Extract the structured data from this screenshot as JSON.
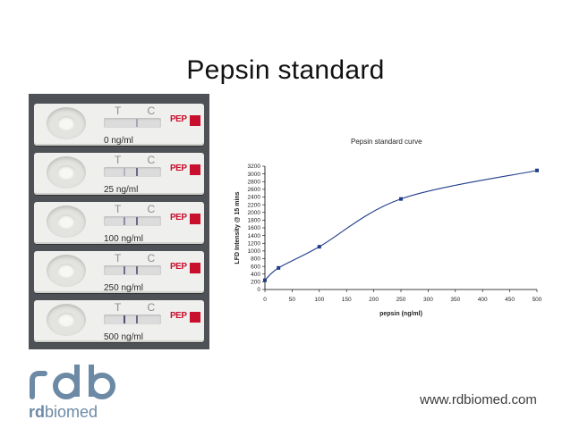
{
  "slide": {
    "title": "Pepsin standard",
    "url": "www.rdbiomed.com"
  },
  "brand": {
    "mark": "rdb",
    "wordmark_prefix": "rd",
    "wordmark_suffix": "biomed",
    "color": "#6c8aa6"
  },
  "photo": {
    "tc_label": "T C",
    "badge_text": "PEP",
    "strips": [
      {
        "concentration": "0 ng/ml"
      },
      {
        "concentration": "25 ng/ml"
      },
      {
        "concentration": "100 ng/ml"
      },
      {
        "concentration": "250 ng/ml"
      },
      {
        "concentration": "500 ng/ml"
      }
    ]
  },
  "chart_data": {
    "type": "scatter",
    "title": "Pepsin standard curve",
    "xlabel": "pepsin (ng/ml)",
    "ylabel": "LFD Intensity @ 15 mins",
    "xlim": [
      0,
      500
    ],
    "ylim": [
      0,
      3200
    ],
    "xticks": [
      0,
      50,
      100,
      150,
      200,
      250,
      300,
      350,
      400,
      450,
      500
    ],
    "yticks": [
      0,
      200,
      400,
      600,
      800,
      1000,
      1200,
      1400,
      1600,
      1800,
      2000,
      2200,
      2400,
      2600,
      2800,
      3000,
      3200
    ],
    "points": [
      {
        "x": 0,
        "y": 240
      },
      {
        "x": 25,
        "y": 560
      },
      {
        "x": 100,
        "y": 1110
      },
      {
        "x": 250,
        "y": 2350
      },
      {
        "x": 500,
        "y": 3090
      }
    ],
    "fit_curve": true,
    "grid": false,
    "marker_color": "#1f3d8a",
    "line_color": "#1f3d8a"
  }
}
